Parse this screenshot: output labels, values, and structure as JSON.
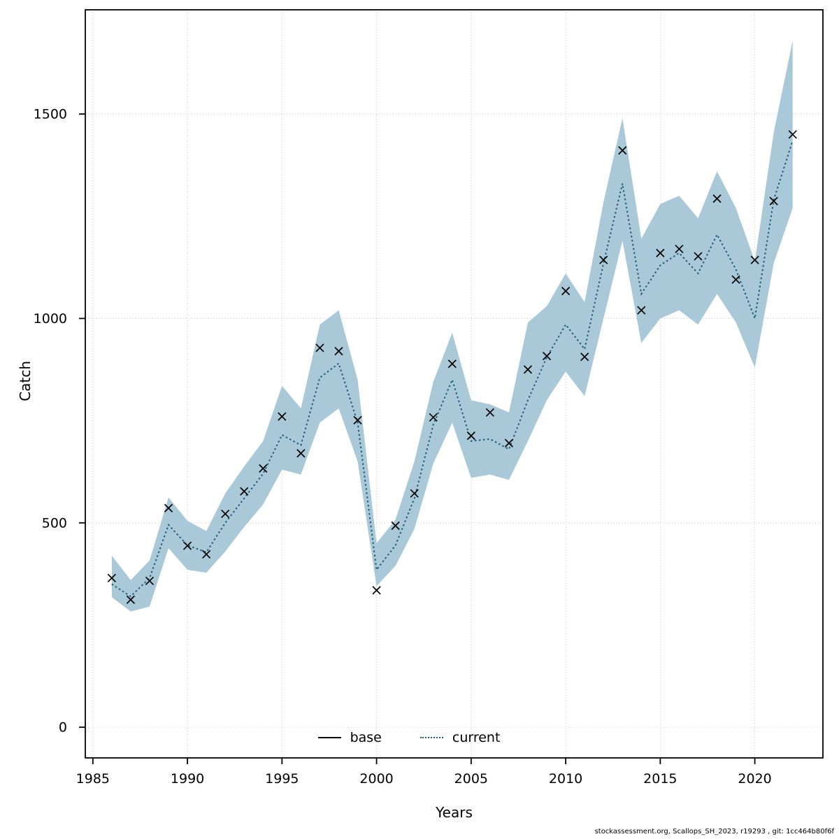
{
  "footer": {
    "text": "stockassessment.org, Scallops_SH_2023, r19293 , git: 1cc464b80f6f"
  },
  "chart_data": {
    "type": "line",
    "xlabel": "Years",
    "ylabel": "Catch",
    "legend": [
      "base",
      "current"
    ],
    "legend_position": "bottom-center-inside",
    "grid": true,
    "x_range": [
      1984.6,
      2023.6
    ],
    "y_range": [
      -75,
      1755
    ],
    "x_ticks": [
      1985,
      1990,
      1995,
      2000,
      2005,
      2010,
      2015,
      2020
    ],
    "y_ticks": [
      0,
      500,
      1000,
      1500
    ],
    "x": [
      1986,
      1987,
      1988,
      1989,
      1990,
      1991,
      1992,
      1993,
      1994,
      1995,
      1996,
      1997,
      1998,
      1999,
      2000,
      2001,
      2002,
      2003,
      2004,
      2005,
      2006,
      2007,
      2008,
      2009,
      2010,
      2011,
      2012,
      2013,
      2014,
      2015,
      2016,
      2017,
      2018,
      2019,
      2020,
      2021,
      2022
    ],
    "series": [
      {
        "name": "base",
        "style": "x-markers",
        "color": "#000000",
        "values": [
          365,
          312,
          358,
          536,
          444,
          423,
          522,
          577,
          633,
          760,
          670,
          928,
          920,
          751,
          335,
          493,
          572,
          758,
          889,
          713,
          770,
          695,
          875,
          908,
          1067,
          906,
          1143,
          1411,
          1020,
          1160,
          1170,
          1152,
          1293,
          1095,
          1143,
          1287,
          1450
        ]
      },
      {
        "name": "current",
        "style": "dotted-line",
        "color": "#1f5c7a",
        "values": [
          350,
          320,
          365,
          495,
          445,
          428,
          500,
          560,
          620,
          715,
          690,
          855,
          890,
          745,
          385,
          445,
          560,
          740,
          850,
          700,
          705,
          680,
          800,
          905,
          985,
          925,
          1135,
          1330,
          1060,
          1130,
          1160,
          1110,
          1205,
          1120,
          1000,
          1290,
          1435
        ]
      }
    ],
    "band": {
      "name": "current-confidence-band",
      "color": "#a9c8d8",
      "lower": [
        318,
        283,
        295,
        438,
        385,
        378,
        430,
        490,
        545,
        630,
        618,
        745,
        780,
        650,
        345,
        395,
        485,
        645,
        745,
        610,
        618,
        605,
        700,
        800,
        870,
        810,
        1000,
        1190,
        940,
        1000,
        1020,
        985,
        1060,
        990,
        880,
        1135,
        1270
      ],
      "upper": [
        420,
        360,
        408,
        562,
        505,
        480,
        572,
        638,
        700,
        835,
        780,
        985,
        1020,
        850,
        450,
        508,
        650,
        845,
        965,
        800,
        790,
        770,
        990,
        1030,
        1110,
        1040,
        1285,
        1490,
        1195,
        1280,
        1300,
        1245,
        1360,
        1270,
        1140,
        1455,
        1680
      ]
    }
  }
}
